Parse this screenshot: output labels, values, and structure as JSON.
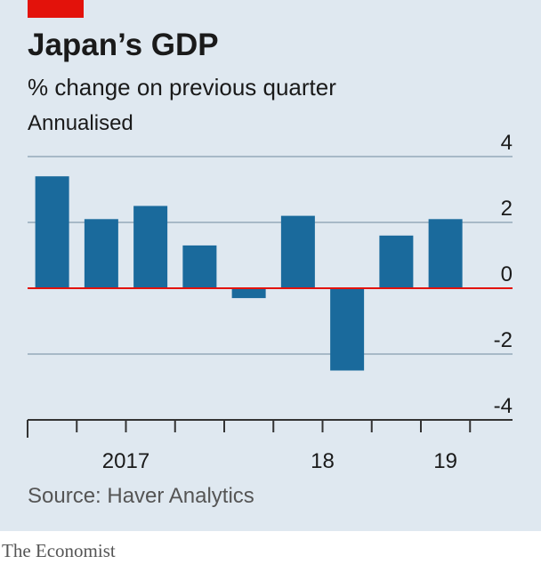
{
  "chart_data": {
    "type": "bar",
    "title": "Japan’s GDP",
    "subtitle": "% change on previous quarter",
    "note": "Annualised",
    "categories": [
      "2017",
      null,
      null,
      null,
      "18",
      null,
      null,
      null,
      "19"
    ],
    "values": [
      3.4,
      2.1,
      2.5,
      1.3,
      -0.3,
      2.2,
      -2.5,
      1.6,
      2.1
    ],
    "color": "#1a6a9c",
    "ylim": [
      -4,
      4
    ],
    "yticks": [
      -4,
      -2,
      0,
      2,
      4
    ],
    "grid": true,
    "source": "Source: Haver Analytics",
    "brand": "The Economist"
  }
}
